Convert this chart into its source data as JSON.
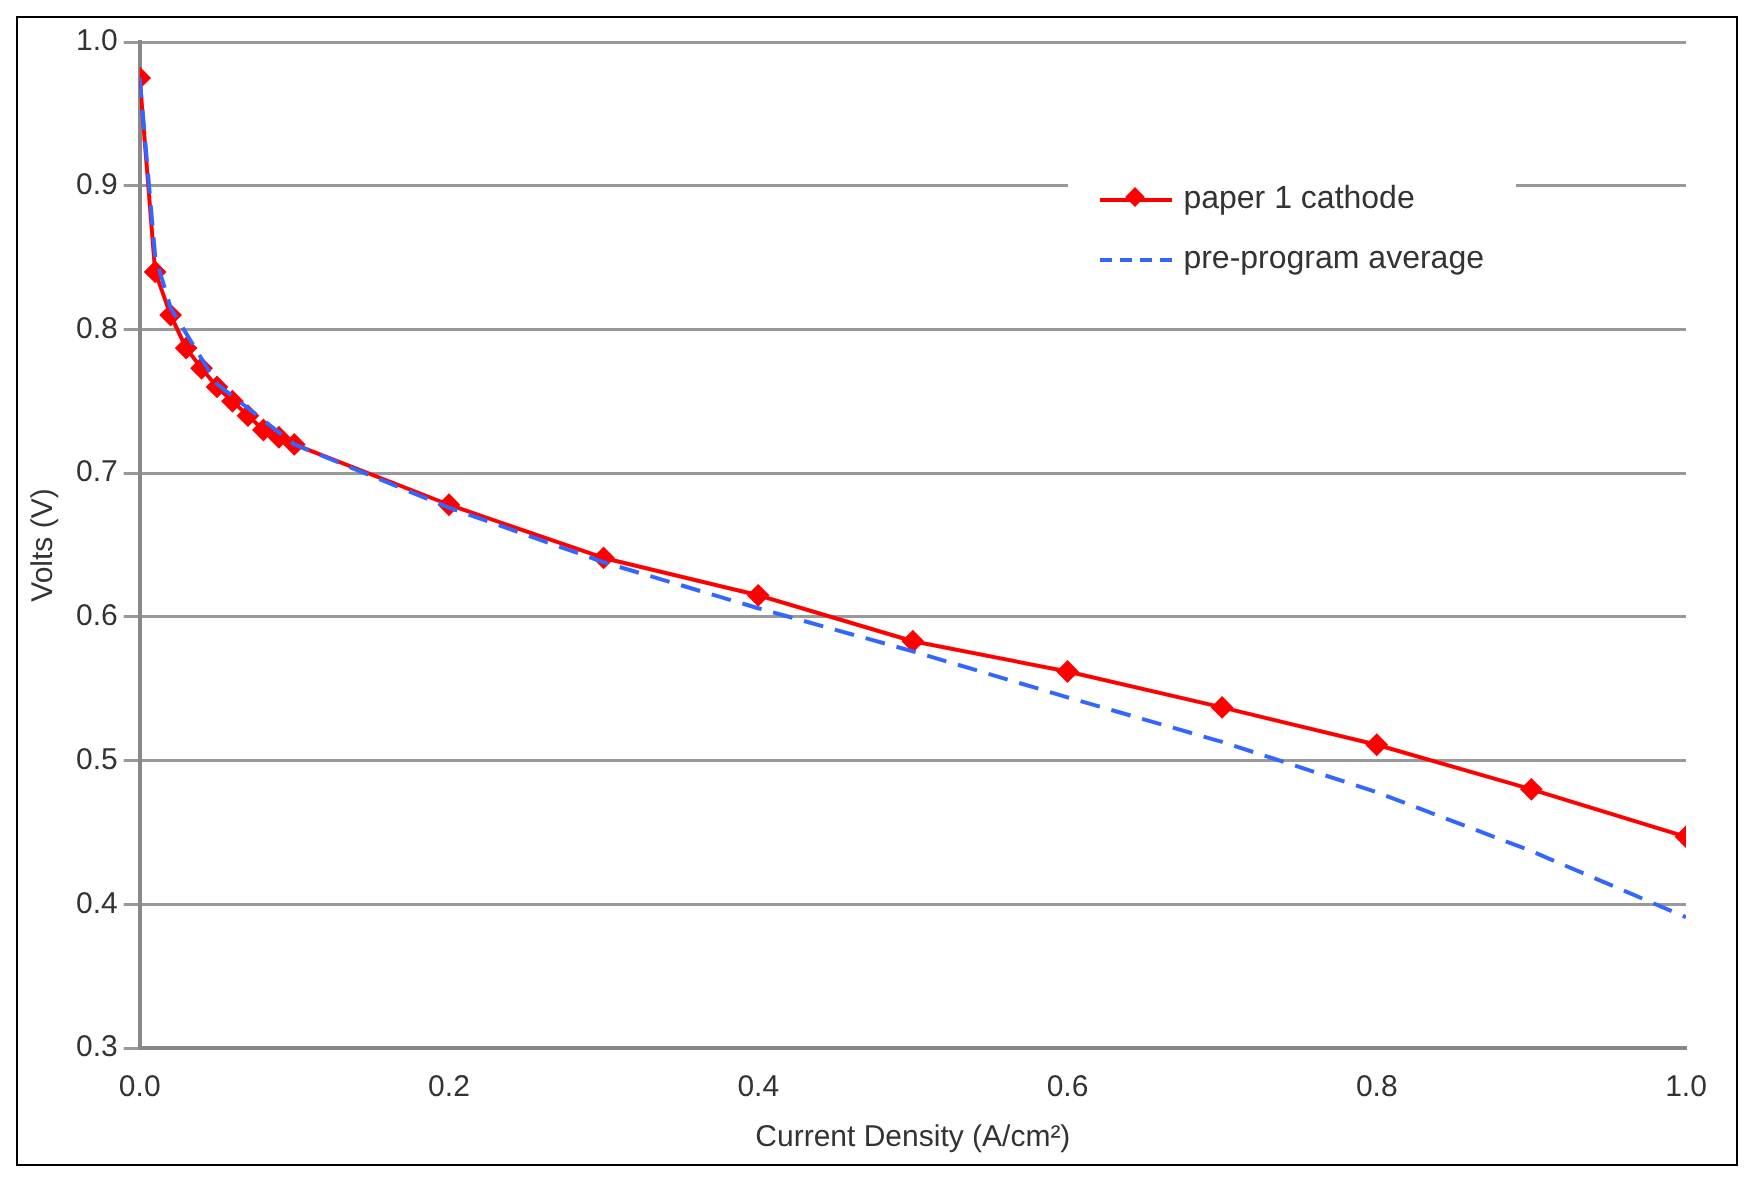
{
  "chart_data": {
    "type": "line",
    "xlabel": "Current Density (A/cm²)",
    "ylabel": "Volts (V)",
    "xlim": [
      0,
      1.0
    ],
    "ylim": [
      0.3,
      1.0
    ],
    "xticks": [
      {
        "value": 0,
        "label": "0.0"
      },
      0.2,
      0.4,
      0.6,
      0.8,
      {
        "value": 1.0,
        "label": "1.0"
      }
    ],
    "yticks": [
      0.3,
      0.4,
      0.5,
      0.6,
      0.7,
      0.8,
      0.9,
      {
        "value": 1.0,
        "label": "1.0"
      }
    ],
    "grid": "y",
    "legend": "top right",
    "series": [
      {
        "name": "paper 1 cathode",
        "color": "#ff0000",
        "marker": "diamond",
        "line_style": "solid",
        "x": [
          0,
          0.01,
          0.02,
          0.03,
          0.04,
          0.05,
          0.06,
          0.07,
          0.08,
          0.09,
          0.1,
          0.2,
          0.3,
          0.4,
          0.5,
          0.6,
          0.7,
          0.8,
          0.9,
          1.0
        ],
        "values": [
          0.975,
          0.84,
          0.81,
          0.787,
          0.773,
          0.76,
          0.75,
          0.74,
          0.73,
          0.725,
          0.72,
          0.678,
          0.641,
          0.615,
          0.583,
          0.562,
          0.537,
          0.511,
          0.48,
          0.447
        ]
      },
      {
        "name": "pre-program average",
        "color": "#3366ff",
        "marker": "none",
        "line_style": "dashed",
        "x": [
          0,
          0.01,
          0.02,
          0.05,
          0.1,
          0.15,
          0.2,
          0.3,
          0.4,
          0.5,
          0.6,
          0.7,
          0.8,
          0.9,
          1.0
        ],
        "values": [
          0.975,
          0.851,
          0.815,
          0.762,
          0.72,
          0.698,
          0.676,
          0.638,
          0.606,
          0.576,
          0.544,
          0.513,
          0.478,
          0.437,
          0.391
        ]
      }
    ]
  }
}
